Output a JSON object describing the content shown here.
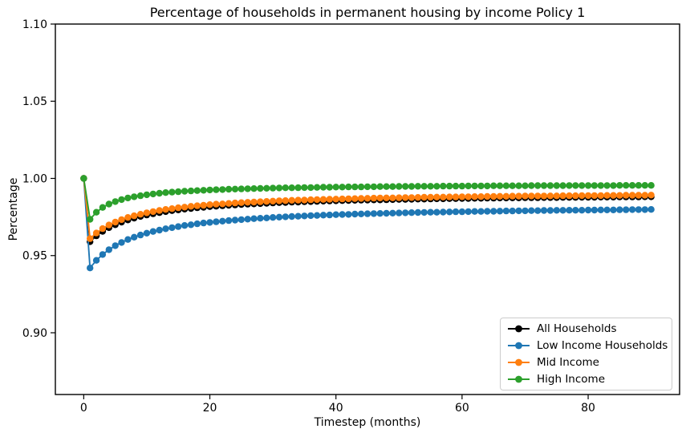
{
  "chart_data": {
    "type": "line",
    "title": "Percentage of households in permanent housing by income Policy 1",
    "xlabel": "Timestep (months)",
    "ylabel": "Percentage",
    "xlim": [
      -4.5,
      94.5
    ],
    "ylim": [
      0.86,
      1.1
    ],
    "xticks": [
      0,
      20,
      40,
      60,
      80
    ],
    "xtick_labels": [
      "0",
      "20",
      "40",
      "60",
      "80"
    ],
    "yticks": [
      1.1,
      1.05,
      1.0,
      0.95,
      0.9
    ],
    "ytick_labels": [
      "1.10",
      "1.05",
      "1.00",
      "0.95",
      "0.90"
    ],
    "grid": false,
    "marker": "o",
    "legend_position": "lower right",
    "x": [
      0,
      1,
      2,
      3,
      4,
      5,
      6,
      7,
      8,
      9,
      10,
      11,
      12,
      13,
      14,
      15,
      16,
      17,
      18,
      19,
      20,
      21,
      22,
      23,
      24,
      25,
      26,
      27,
      28,
      29,
      30,
      31,
      32,
      33,
      34,
      35,
      36,
      37,
      38,
      39,
      40,
      41,
      42,
      43,
      44,
      45,
      46,
      47,
      48,
      49,
      50,
      51,
      52,
      53,
      54,
      55,
      56,
      57,
      58,
      59,
      60,
      61,
      62,
      63,
      64,
      65,
      66,
      67,
      68,
      69,
      70,
      71,
      72,
      73,
      74,
      75,
      76,
      77,
      78,
      79,
      80,
      81,
      82,
      83,
      84,
      85,
      86,
      87,
      88,
      89,
      90
    ],
    "series": [
      {
        "name": "All Households",
        "color": "#000000",
        "values": [
          1.0,
          0.959,
          0.9628,
          0.9657,
          0.9681,
          0.97,
          0.9717,
          0.9731,
          0.9743,
          0.9754,
          0.9763,
          0.9771,
          0.9778,
          0.9785,
          0.9791,
          0.9796,
          0.9801,
          0.9805,
          0.981,
          0.9813,
          0.9817,
          0.982,
          0.9823,
          0.9826,
          0.9828,
          0.9831,
          0.9833,
          0.9835,
          0.9837,
          0.9839,
          0.9841,
          0.9843,
          0.9844,
          0.9846,
          0.9847,
          0.9849,
          0.985,
          0.9851,
          0.9853,
          0.9854,
          0.9855,
          0.9856,
          0.9857,
          0.9858,
          0.9859,
          0.986,
          0.9861,
          0.9861,
          0.9862,
          0.9863,
          0.9864,
          0.9864,
          0.9865,
          0.9866,
          0.9866,
          0.9867,
          0.9868,
          0.9868,
          0.9869,
          0.9869,
          0.987,
          0.987,
          0.9871,
          0.9871,
          0.9872,
          0.9872,
          0.9873,
          0.9873,
          0.9874,
          0.9874,
          0.9875,
          0.9875,
          0.9875,
          0.9876,
          0.9876,
          0.9876,
          0.9877,
          0.9877,
          0.9877,
          0.9878,
          0.9878,
          0.9878,
          0.9879,
          0.9879,
          0.9879,
          0.988,
          0.988,
          0.988,
          0.988,
          0.9881,
          0.9881
        ]
      },
      {
        "name": "Low Income Households",
        "color": "#1f77b4",
        "values": [
          1.0,
          0.942,
          0.9469,
          0.9507,
          0.9538,
          0.9564,
          0.9585,
          0.9604,
          0.9619,
          0.9633,
          0.9645,
          0.9656,
          0.9665,
          0.9674,
          0.9681,
          0.9688,
          0.9695,
          0.97,
          0.9706,
          0.9711,
          0.9715,
          0.9719,
          0.9723,
          0.9727,
          0.973,
          0.9733,
          0.9736,
          0.9739,
          0.9742,
          0.9744,
          0.9747,
          0.9749,
          0.9751,
          0.9753,
          0.9755,
          0.9757,
          0.9759,
          0.976,
          0.9762,
          0.9763,
          0.9765,
          0.9766,
          0.9767,
          0.9769,
          0.977,
          0.9771,
          0.9772,
          0.9773,
          0.9774,
          0.9775,
          0.9776,
          0.9777,
          0.9778,
          0.9779,
          0.978,
          0.9781,
          0.9781,
          0.9782,
          0.9783,
          0.9784,
          0.9784,
          0.9785,
          0.9786,
          0.9786,
          0.9787,
          0.9787,
          0.9788,
          0.9789,
          0.9789,
          0.979,
          0.979,
          0.9791,
          0.9791,
          0.9792,
          0.9792,
          0.9793,
          0.9793,
          0.9794,
          0.9794,
          0.9794,
          0.9795,
          0.9795,
          0.9796,
          0.9796,
          0.9796,
          0.9797,
          0.9797,
          0.9798,
          0.9798,
          0.9798,
          0.9799
        ]
      },
      {
        "name": "Mid Income",
        "color": "#ff7f0e",
        "values": [
          1.0,
          0.961,
          0.9646,
          0.9675,
          0.9698,
          0.9717,
          0.9733,
          0.9747,
          0.9758,
          0.9768,
          0.9777,
          0.9785,
          0.9792,
          0.9799,
          0.9804,
          0.981,
          0.9814,
          0.9819,
          0.9823,
          0.9826,
          0.983,
          0.9833,
          0.9835,
          0.9838,
          0.9841,
          0.9843,
          0.9845,
          0.9847,
          0.9849,
          0.9851,
          0.9853,
          0.9855,
          0.9856,
          0.9858,
          0.9859,
          0.986,
          0.9862,
          0.9863,
          0.9864,
          0.9865,
          0.9866,
          0.9867,
          0.9868,
          0.9869,
          0.987,
          0.9871,
          0.9872,
          0.9873,
          0.9874,
          0.9874,
          0.9875,
          0.9876,
          0.9876,
          0.9877,
          0.9878,
          0.9878,
          0.9879,
          0.9879,
          0.988,
          0.988,
          0.9881,
          0.9881,
          0.9882,
          0.9882,
          0.9883,
          0.9883,
          0.9884,
          0.9884,
          0.9885,
          0.9885,
          0.9886,
          0.9886,
          0.9886,
          0.9886,
          0.9887,
          0.9887,
          0.9888,
          0.9888,
          0.9888,
          0.9889,
          0.9889,
          0.9889,
          0.9889,
          0.989,
          0.989,
          0.989,
          0.9891,
          0.9891,
          0.9891,
          0.9891,
          0.9892
        ]
      },
      {
        "name": "High Income",
        "color": "#2ca02c",
        "values": [
          1.0,
          0.9735,
          0.9781,
          0.9812,
          0.9834,
          0.985,
          0.9863,
          0.9873,
          0.9881,
          0.9888,
          0.9894,
          0.9899,
          0.9904,
          0.9908,
          0.9911,
          0.9914,
          0.9917,
          0.9919,
          0.9921,
          0.9923,
          0.9925,
          0.9927,
          0.9928,
          0.993,
          0.9931,
          0.9932,
          0.9933,
          0.9934,
          0.9935,
          0.9936,
          0.9937,
          0.9938,
          0.9939,
          0.9939,
          0.994,
          0.9941,
          0.9941,
          0.9942,
          0.9943,
          0.9943,
          0.9944,
          0.9944,
          0.9945,
          0.9945,
          0.9945,
          0.9946,
          0.9946,
          0.9947,
          0.9947,
          0.9947,
          0.9948,
          0.9948,
          0.9948,
          0.9949,
          0.9949,
          0.9949,
          0.9949,
          0.995,
          0.995,
          0.995,
          0.995,
          0.9951,
          0.9951,
          0.9951,
          0.9951,
          0.9952,
          0.9952,
          0.9952,
          0.9952,
          0.9952,
          0.9952,
          0.9953,
          0.9953,
          0.9953,
          0.9953,
          0.9953,
          0.9953,
          0.9954,
          0.9954,
          0.9954,
          0.9954,
          0.9954,
          0.9954,
          0.9954,
          0.9954,
          0.9955,
          0.9955,
          0.9955,
          0.9955,
          0.9955,
          0.9955
        ]
      }
    ]
  }
}
